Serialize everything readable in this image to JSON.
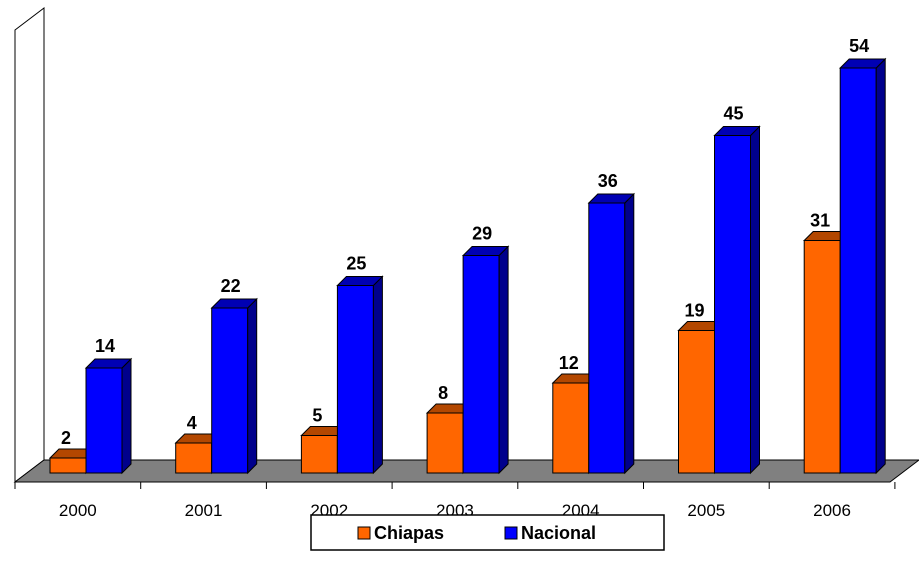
{
  "chart_data": {
    "type": "bar",
    "categories": [
      "2000",
      "2001",
      "2002",
      "2003",
      "2004",
      "2005",
      "2006"
    ],
    "series": [
      {
        "name": "Chiapas",
        "values": [
          2,
          4,
          5,
          8,
          12,
          19,
          31
        ],
        "color": "#FF6600"
      },
      {
        "name": "Nacional",
        "values": [
          14,
          22,
          25,
          29,
          36,
          45,
          54
        ],
        "color": "#0000FF"
      }
    ],
    "title": "",
    "xlabel": "",
    "ylabel": "",
    "ylim": [
      0,
      60
    ],
    "grid": false,
    "legend": "bottom",
    "style": "3d-clustered-column"
  }
}
